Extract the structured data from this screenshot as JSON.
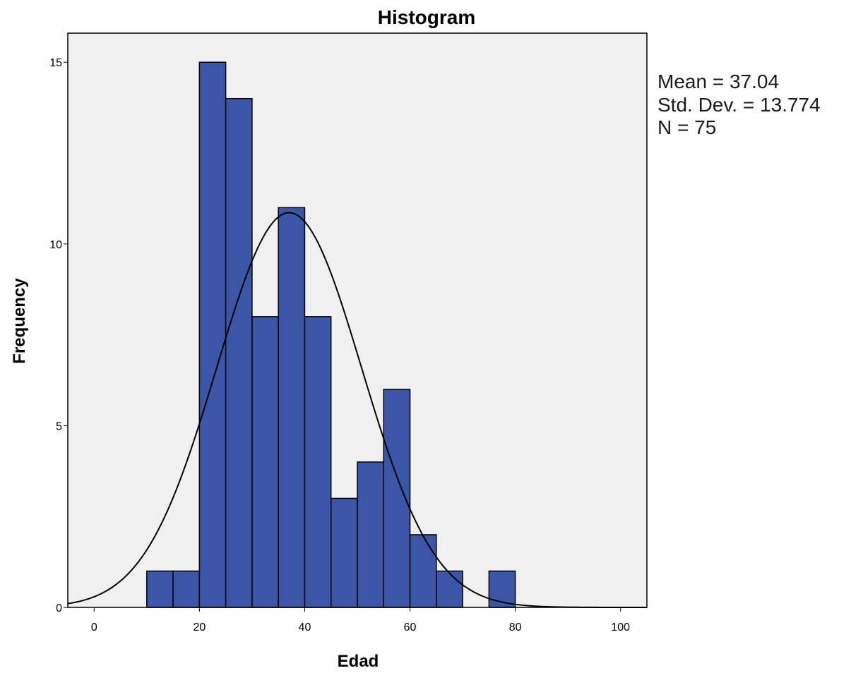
{
  "colors": {
    "bar_fill": "#3B56A6",
    "bar_stroke": "#000000",
    "plot_background": "#F0F0F0",
    "curve": "#000000"
  },
  "chart_data": {
    "type": "bar",
    "subtype": "histogram",
    "title": "Histogram",
    "xlabel": "Edad",
    "ylabel": "Frequency",
    "xlim": [
      -5,
      105
    ],
    "ylim": [
      0,
      15.8
    ],
    "xticks": [
      0,
      20,
      40,
      60,
      80,
      100
    ],
    "yticks": [
      0,
      5,
      10,
      15
    ],
    "bin_width": 5,
    "bins": [
      {
        "start": 10,
        "end": 15,
        "count": 1
      },
      {
        "start": 15,
        "end": 20,
        "count": 1
      },
      {
        "start": 20,
        "end": 25,
        "count": 15
      },
      {
        "start": 25,
        "end": 30,
        "count": 14
      },
      {
        "start": 30,
        "end": 35,
        "count": 8
      },
      {
        "start": 35,
        "end": 40,
        "count": 11
      },
      {
        "start": 40,
        "end": 45,
        "count": 8
      },
      {
        "start": 45,
        "end": 50,
        "count": 3
      },
      {
        "start": 50,
        "end": 55,
        "count": 4
      },
      {
        "start": 55,
        "end": 60,
        "count": 6
      },
      {
        "start": 60,
        "end": 65,
        "count": 2
      },
      {
        "start": 65,
        "end": 70,
        "count": 1
      },
      {
        "start": 75,
        "end": 80,
        "count": 1
      }
    ],
    "normal_curve": {
      "mean": 37.04,
      "sd": 13.774,
      "n": 75
    },
    "stats": {
      "mean": "Mean = 37.04",
      "std_dev": "Std. Dev. = 13.774",
      "n": "N = 75"
    },
    "grid": false,
    "legend": "none"
  }
}
